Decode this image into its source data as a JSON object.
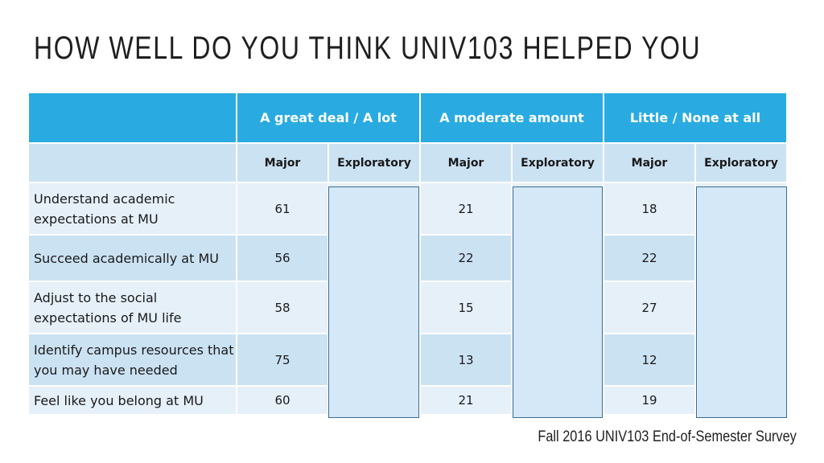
{
  "title": "HOW WELL DO YOU THINK UNIV103 HELPED YOU",
  "column_groups": [
    "A great deal / A lot",
    "A moderate amount",
    "Little /  None at all"
  ],
  "subheaders": {
    "major": "Major",
    "exploratory": "Exploratory"
  },
  "rows": [
    {
      "label": "Understand academic expectations at MU",
      "great": "61",
      "moderate": "21",
      "little": "18"
    },
    {
      "label": "Succeed academically at MU",
      "great": "56",
      "moderate": "22",
      "little": "22"
    },
    {
      "label": "Adjust to the social expectations of MU life",
      "great": "58",
      "moderate": "15",
      "little": "27"
    },
    {
      "label": "Identify campus resources that you may have needed",
      "great": "75",
      "moderate": "13",
      "little": "12"
    },
    {
      "label": "Feel like you belong at MU",
      "great": "60",
      "moderate": "21",
      "little": "19"
    }
  ],
  "source": "Fall 2016 UNIV103 End-of-Semester Survey",
  "colors": {
    "header": "#29abe2",
    "row_light": "#e6f0f9",
    "row_dark": "#cbe2f3",
    "band_fill": "#d4e8f8",
    "band_border": "#3a6d93"
  }
}
